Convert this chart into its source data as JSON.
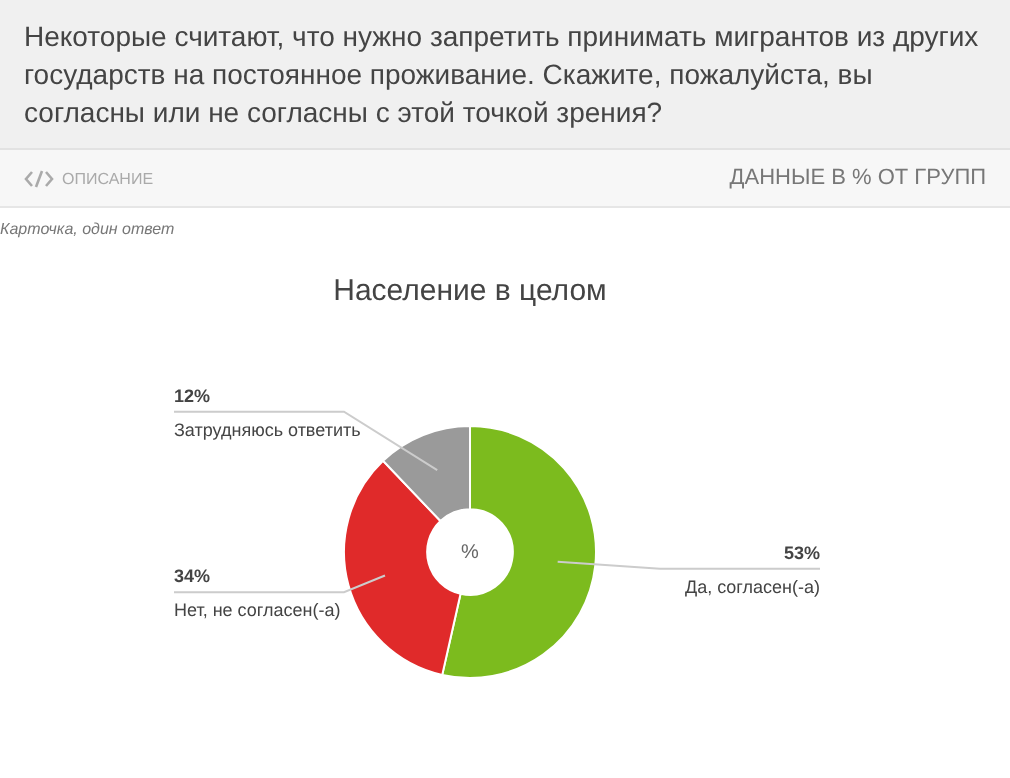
{
  "chart_data": {
    "type": "donut",
    "title": "Некоторые считают, что нужно запретить принимать мигрантов из других государств на постоянное проживание. Скажите, пожалуйста, вы согласны или не согласны с этой точкой зрения?",
    "subtitle": "Население в целом",
    "categories": [
      "Да, согласен(-а)",
      "Нет, не согласен(-а)",
      "Затрудняюсь ответить"
    ],
    "values": [
      53,
      34,
      12
    ],
    "colors": [
      "#7cbb1e",
      "#e02a2a",
      "#9a9a9a"
    ],
    "value_labels": [
      "53%",
      "34%",
      "12%"
    ],
    "annotations": [
      "ОПИСАНИЕ",
      "ДАННЫЕ В % ОТ ГРУПП",
      "Карточка, один ответ",
      "%"
    ]
  }
}
